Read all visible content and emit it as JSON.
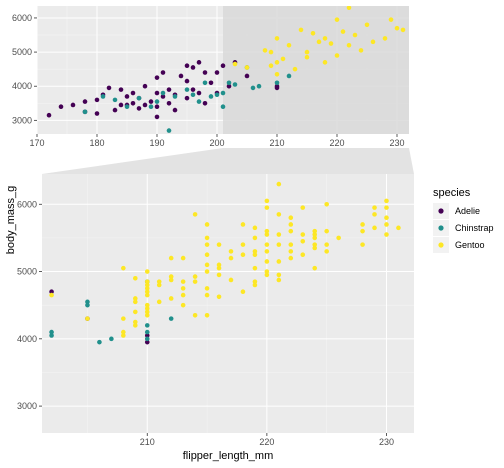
{
  "chart_data": [
    {
      "type": "scatter",
      "panel": "overview",
      "xlim": [
        170,
        232
      ],
      "ylim": [
        2600,
        6350
      ],
      "x_ticks": [
        170,
        180,
        190,
        200,
        210,
        220,
        230
      ],
      "x_tick_labels": [
        "170",
        "180",
        "190",
        "200",
        "210",
        "220",
        "230"
      ],
      "y_ticks": [
        3000,
        4000,
        5000,
        6000
      ],
      "y_tick_labels": [
        "3000",
        "4000",
        "5000",
        "6000"
      ],
      "zoom_region": {
        "x": [
          201,
          232
        ],
        "y": [
          2600,
          6350
        ]
      },
      "series": [
        {
          "name": "Adelie",
          "color": "#440154",
          "points": [
            [
              172,
              3150
            ],
            [
              174,
              3400
            ],
            [
              176,
              3450
            ],
            [
              178,
              3250
            ],
            [
              178,
              3550
            ],
            [
              180,
              3600
            ],
            [
              180,
              3200
            ],
            [
              181,
              3750
            ],
            [
              182,
              3950
            ],
            [
              183,
              3300
            ],
            [
              184,
              3450
            ],
            [
              184,
              3900
            ],
            [
              185,
              3700
            ],
            [
              185,
              3450
            ],
            [
              186,
              3800
            ],
            [
              186,
              3500
            ],
            [
              187,
              3650
            ],
            [
              187,
              3350
            ],
            [
              188,
              4000
            ],
            [
              188,
              3450
            ],
            [
              189,
              3550
            ],
            [
              190,
              4250
            ],
            [
              190,
              3800
            ],
            [
              190,
              3400
            ],
            [
              190,
              3100
            ],
            [
              191,
              3700
            ],
            [
              191,
              4400
            ],
            [
              192,
              3500
            ],
            [
              192,
              3900
            ],
            [
              193,
              3750
            ],
            [
              193,
              3300
            ],
            [
              194,
              4300
            ],
            [
              195,
              3650
            ],
            [
              195,
              4150
            ],
            [
              195,
              4600
            ],
            [
              196,
              3900
            ],
            [
              196,
              4550
            ],
            [
              197,
              3800
            ],
            [
              197,
              4700
            ],
            [
              198,
              4400
            ],
            [
              198,
              3500
            ],
            [
              199,
              4100
            ],
            [
              200,
              4400
            ],
            [
              200,
              3800
            ],
            [
              201,
              4600
            ],
            [
              202,
              4000
            ],
            [
              203,
              4700
            ],
            [
              205,
              4300
            ],
            [
              210,
              3950
            ],
            [
              210,
              4000
            ]
          ]
        },
        {
          "name": "Chinstrap",
          "color": "#21908C",
          "points": [
            [
              178,
              3250
            ],
            [
              181,
              3700
            ],
            [
              183,
              3600
            ],
            [
              185,
              3400
            ],
            [
              187,
              3650
            ],
            [
              189,
              3400
            ],
            [
              190,
              3550
            ],
            [
              191,
              3800
            ],
            [
              192,
              2700
            ],
            [
              193,
              3700
            ],
            [
              195,
              3900
            ],
            [
              196,
              3750
            ],
            [
              197,
              3550
            ],
            [
              198,
              4100
            ],
            [
              199,
              3700
            ],
            [
              200,
              3750
            ],
            [
              201,
              3800
            ],
            [
              201,
              3400
            ],
            [
              202,
              4100
            ],
            [
              203,
              4050
            ],
            [
              205,
              4550
            ],
            [
              206,
              3950
            ],
            [
              207,
              4000
            ],
            [
              210,
              4100
            ],
            [
              212,
              4300
            ]
          ]
        },
        {
          "name": "Gentoo",
          "color": "#FDE725",
          "points": [
            [
              203,
              4650
            ],
            [
              205,
              4550
            ],
            [
              208,
              5050
            ],
            [
              209,
              4600
            ],
            [
              209,
              5000
            ],
            [
              210,
              4700
            ],
            [
              210,
              5400
            ],
            [
              210,
              4350
            ],
            [
              211,
              4800
            ],
            [
              212,
              5200
            ],
            [
              213,
              4500
            ],
            [
              214,
              5650
            ],
            [
              215,
              5000
            ],
            [
              215,
              4850
            ],
            [
              216,
              5550
            ],
            [
              217,
              5300
            ],
            [
              218,
              4700
            ],
            [
              218,
              5400
            ],
            [
              219,
              5250
            ],
            [
              220,
              4900
            ],
            [
              220,
              5950
            ],
            [
              221,
              5600
            ],
            [
              222,
              5200
            ],
            [
              222,
              6300
            ],
            [
              223,
              5500
            ],
            [
              224,
              5050
            ],
            [
              225,
              5800
            ],
            [
              226,
              5300
            ],
            [
              228,
              5400
            ],
            [
              229,
              5950
            ],
            [
              230,
              5700
            ],
            [
              231,
              5650
            ]
          ]
        }
      ]
    },
    {
      "type": "scatter",
      "panel": "zoom",
      "xlabel": "flipper_length_mm",
      "ylabel": "body_mass_g",
      "xlim": [
        201.2,
        232.3
      ],
      "ylim": [
        2600,
        6450
      ],
      "x_ticks": [
        210,
        220,
        230
      ],
      "x_tick_labels": [
        "210",
        "220",
        "230"
      ],
      "y_ticks": [
        3000,
        4000,
        5000,
        6000
      ],
      "y_tick_labels": [
        "3000",
        "4000",
        "5000",
        "6000"
      ],
      "legend": {
        "title": "species",
        "position": "right"
      },
      "series": [
        {
          "name": "Adelie",
          "color": "#440154",
          "points": [
            [
              201,
              3550
            ],
            [
              201,
              3750
            ],
            [
              201,
              3850
            ],
            [
              202,
              4700
            ],
            [
              205,
              4300
            ],
            [
              210,
              3950
            ],
            [
              210,
              4050
            ]
          ]
        },
        {
          "name": "Chinstrap",
          "color": "#21908C",
          "points": [
            [
              201,
              3400
            ],
            [
              201,
              3800
            ],
            [
              202,
              4050
            ],
            [
              202,
              4100
            ],
            [
              205,
              4550
            ],
            [
              205,
              4500
            ],
            [
              206,
              3950
            ],
            [
              207,
              4000
            ],
            [
              210,
              4100
            ],
            [
              210,
              4000
            ],
            [
              210,
              4200
            ],
            [
              210,
              4850
            ],
            [
              212,
              4300
            ]
          ]
        },
        {
          "name": "Gentoo",
          "color": "#FDE725",
          "points": [
            [
              202,
              4650
            ],
            [
              205,
              4300
            ],
            [
              208,
              5050
            ],
            [
              208,
              4300
            ],
            [
              208,
              4100
            ],
            [
              208,
              4050
            ],
            [
              209,
              4400
            ],
            [
              209,
              4600
            ],
            [
              209,
              4550
            ],
            [
              209,
              4900
            ],
            [
              209,
              4200
            ],
            [
              209,
              4250
            ],
            [
              210,
              4350
            ],
            [
              210,
              4400
            ],
            [
              210,
              4450
            ],
            [
              210,
              4500
            ],
            [
              210,
              4650
            ],
            [
              210,
              4700
            ],
            [
              210,
              4750
            ],
            [
              210,
              4800
            ],
            [
              210,
              4850
            ],
            [
              210,
              5000
            ],
            [
              211,
              4800
            ],
            [
              211,
              4550
            ],
            [
              211,
              4850
            ],
            [
              212,
              5200
            ],
            [
              212,
              4600
            ],
            [
              212,
              4875
            ],
            [
              212,
              4925
            ],
            [
              213,
              4500
            ],
            [
              213,
              4650
            ],
            [
              213,
              4750
            ],
            [
              213,
              4850
            ],
            [
              213,
              5200
            ],
            [
              214,
              4850
            ],
            [
              214,
              5850
            ],
            [
              214,
              4925
            ],
            [
              214,
              4350
            ],
            [
              215,
              4350
            ],
            [
              215,
              4650
            ],
            [
              215,
              4750
            ],
            [
              215,
              5000
            ],
            [
              215,
              5100
            ],
            [
              215,
              5250
            ],
            [
              215,
              5400
            ],
            [
              215,
              5500
            ],
            [
              215,
              5700
            ],
            [
              216,
              4950
            ],
            [
              216,
              5050
            ],
            [
              216,
              5100
            ],
            [
              216,
              5400
            ],
            [
              216,
              4625
            ],
            [
              217,
              4875
            ],
            [
              217,
              5200
            ],
            [
              217,
              5300
            ],
            [
              218,
              5700
            ],
            [
              218,
              5250
            ],
            [
              218,
              4700
            ],
            [
              218,
              5400
            ],
            [
              219,
              4800
            ],
            [
              219,
              4850
            ],
            [
              219,
              5050
            ],
            [
              219,
              5250
            ],
            [
              219,
              5300
            ],
            [
              219,
              5500
            ],
            [
              219,
              5650
            ],
            [
              220,
              4950
            ],
            [
              220,
              5000
            ],
            [
              220,
              5150
            ],
            [
              220,
              5300
            ],
            [
              220,
              5400
            ],
            [
              220,
              5550
            ],
            [
              220,
              5600
            ],
            [
              220,
              5950
            ],
            [
              220,
              6050
            ],
            [
              221,
              4950
            ],
            [
              221,
              5150
            ],
            [
              221,
              5400
            ],
            [
              221,
              5550
            ],
            [
              221,
              5850
            ],
            [
              221,
              6300
            ],
            [
              221,
              4875
            ],
            [
              222,
              5200
            ],
            [
              222,
              5300
            ],
            [
              222,
              5400
            ],
            [
              222,
              5600
            ],
            [
              222,
              5800
            ],
            [
              222,
              5700
            ],
            [
              223,
              5950
            ],
            [
              223,
              5250
            ],
            [
              223,
              5550
            ],
            [
              223,
              5450
            ],
            [
              224,
              5050
            ],
            [
              224,
              5350
            ],
            [
              224,
              5400
            ],
            [
              224,
              5500
            ],
            [
              224,
              5550
            ],
            [
              224,
              5600
            ],
            [
              225,
              5300
            ],
            [
              225,
              5400
            ],
            [
              225,
              5600
            ],
            [
              225,
              6000
            ],
            [
              226,
              5500
            ],
            [
              228,
              5400
            ],
            [
              228,
              5600
            ],
            [
              228,
              5700
            ],
            [
              229,
              5650
            ],
            [
              229,
              5850
            ],
            [
              229,
              5950
            ],
            [
              230,
              5550
            ],
            [
              230,
              5700
            ],
            [
              230,
              5800
            ],
            [
              230,
              6050
            ],
            [
              230,
              5950
            ],
            [
              231,
              5650
            ]
          ]
        }
      ]
    }
  ]
}
